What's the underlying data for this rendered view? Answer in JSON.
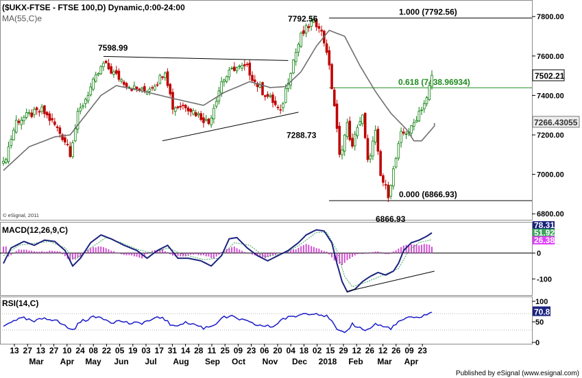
{
  "chart_data": [
    {
      "type": "candlestick",
      "title": "($UKX-FTSE - FTSE 100,D) Dynamic,0:00-24:00",
      "indicator_label": "MA(55,C)e",
      "watermark": "© eSignal, 2011",
      "ylim": [
        6780,
        7870
      ],
      "y_ticks": [
        6800,
        7000,
        7200,
        7400,
        7600,
        7800
      ],
      "y_tick_labels": [
        "6800.00",
        "7000.00",
        "7200.00",
        "7400.00",
        "7600.00",
        "7800.00"
      ],
      "last_price": {
        "value": 7502.21,
        "label": "7502.21"
      },
      "ma_last": {
        "value": 7266.43055,
        "label": "7266.43055"
      },
      "annotations": [
        {
          "label": "7598.99",
          "value": 7598.99
        },
        {
          "label": "7792.56",
          "value": 7792.56
        },
        {
          "label": "7288.73",
          "value": 7288.73
        },
        {
          "label": "6866.93",
          "value": 6866.93
        }
      ],
      "fib_levels": [
        {
          "label": "1.000 (7792.56)",
          "value": 7792.56
        },
        {
          "label": "0.618 (7438.96934)",
          "value": 7438.96934
        },
        {
          "label": "0.000 (6866.93)",
          "value": 6866.93
        }
      ],
      "trendlines": [
        {
          "from": {
            "bar": 39,
            "value": 7598
          },
          "to": {
            "bar": 111,
            "value": 7577
          }
        },
        {
          "from": {
            "bar": 62,
            "value": 7170
          },
          "to": {
            "bar": 115,
            "value": 7315
          }
        }
      ],
      "ma_series": [
        [
          0,
          7020
        ],
        [
          10,
          7140
        ],
        [
          20,
          7190
        ],
        [
          26,
          7200
        ],
        [
          32,
          7300
        ],
        [
          38,
          7400
        ],
        [
          44,
          7450
        ],
        [
          55,
          7420
        ],
        [
          66,
          7385
        ],
        [
          78,
          7350
        ],
        [
          86,
          7415
        ],
        [
          96,
          7470
        ],
        [
          104,
          7440
        ],
        [
          110,
          7445
        ],
        [
          116,
          7520
        ],
        [
          122,
          7650
        ],
        [
          127,
          7730
        ],
        [
          133,
          7700
        ],
        [
          139,
          7550
        ],
        [
          145,
          7420
        ],
        [
          151,
          7310
        ],
        [
          157,
          7230
        ],
        [
          160,
          7170
        ],
        [
          163,
          7170
        ],
        [
          166,
          7215
        ],
        [
          169,
          7260
        ]
      ],
      "close_series": [
        [
          0,
          7050
        ],
        [
          5,
          7270
        ],
        [
          10,
          7300
        ],
        [
          15,
          7325
        ],
        [
          20,
          7250
        ],
        [
          25,
          7150
        ],
        [
          26,
          7110
        ],
        [
          29,
          7300
        ],
        [
          34,
          7440
        ],
        [
          39,
          7560
        ],
        [
          44,
          7500
        ],
        [
          50,
          7440
        ],
        [
          55,
          7420
        ],
        [
          60,
          7470
        ],
        [
          63,
          7530
        ],
        [
          66,
          7340
        ],
        [
          71,
          7350
        ],
        [
          78,
          7280
        ],
        [
          80,
          7260
        ],
        [
          85,
          7470
        ],
        [
          90,
          7540
        ],
        [
          95,
          7540
        ],
        [
          98,
          7470
        ],
        [
          101,
          7420
        ],
        [
          105,
          7370
        ],
        [
          108,
          7310
        ],
        [
          110,
          7430
        ],
        [
          113,
          7580
        ],
        [
          116,
          7700
        ],
        [
          120,
          7770
        ],
        [
          123,
          7760
        ],
        [
          126,
          7630
        ],
        [
          129,
          7350
        ],
        [
          131,
          7090
        ],
        [
          134,
          7250
        ],
        [
          136,
          7130
        ],
        [
          138,
          7250
        ],
        [
          140,
          7290
        ],
        [
          142,
          7060
        ],
        [
          145,
          7210
        ],
        [
          147,
          6990
        ],
        [
          150,
          6900
        ],
        [
          152,
          7020
        ],
        [
          155,
          7200
        ],
        [
          159,
          7230
        ],
        [
          162,
          7320
        ],
        [
          165,
          7380
        ],
        [
          167,
          7502
        ]
      ],
      "bar_count": 168
    },
    {
      "type": "line",
      "title": "MACD(12,26,9,C)",
      "ylim": [
        -160,
        110
      ],
      "y_ticks": [
        0,
        -100
      ],
      "y_tick_labels": [
        "0",
        "-100"
      ],
      "last_values": [
        {
          "label": "78.31",
          "color": "#1a237e"
        },
        {
          "label": "51.92",
          "color": "#3aa35a"
        },
        {
          "label": "26.38",
          "color": "#e040fb"
        }
      ],
      "macd_series": [
        [
          0,
          -40
        ],
        [
          3,
          20
        ],
        [
          8,
          45
        ],
        [
          12,
          30
        ],
        [
          16,
          50
        ],
        [
          20,
          45
        ],
        [
          24,
          10
        ],
        [
          27,
          -50
        ],
        [
          30,
          -20
        ],
        [
          34,
          40
        ],
        [
          38,
          70
        ],
        [
          42,
          55
        ],
        [
          47,
          30
        ],
        [
          52,
          10
        ],
        [
          56,
          -20
        ],
        [
          60,
          10
        ],
        [
          64,
          30
        ],
        [
          68,
          -20
        ],
        [
          72,
          -20
        ],
        [
          77,
          -30
        ],
        [
          81,
          -50
        ],
        [
          85,
          -10
        ],
        [
          88,
          55
        ],
        [
          91,
          60
        ],
        [
          95,
          20
        ],
        [
          99,
          -10
        ],
        [
          103,
          -30
        ],
        [
          107,
          -10
        ],
        [
          111,
          10
        ],
        [
          115,
          40
        ],
        [
          118,
          70
        ],
        [
          122,
          90
        ],
        [
          125,
          85
        ],
        [
          128,
          40
        ],
        [
          130,
          -40
        ],
        [
          132,
          -110
        ],
        [
          134,
          -150
        ],
        [
          137,
          -140
        ],
        [
          140,
          -110
        ],
        [
          143,
          -90
        ],
        [
          146,
          -75
        ],
        [
          149,
          -85
        ],
        [
          152,
          -70
        ],
        [
          154,
          -40
        ],
        [
          156,
          10
        ],
        [
          159,
          40
        ],
        [
          162,
          50
        ],
        [
          165,
          65
        ],
        [
          167,
          78.31
        ]
      ],
      "signal_series": [
        [
          0,
          -10
        ],
        [
          6,
          30
        ],
        [
          12,
          38
        ],
        [
          18,
          45
        ],
        [
          24,
          20
        ],
        [
          28,
          -25
        ],
        [
          34,
          20
        ],
        [
          40,
          60
        ],
        [
          46,
          40
        ],
        [
          52,
          15
        ],
        [
          58,
          0
        ],
        [
          64,
          20
        ],
        [
          70,
          -5
        ],
        [
          78,
          -25
        ],
        [
          84,
          -20
        ],
        [
          90,
          40
        ],
        [
          96,
          30
        ],
        [
          102,
          -15
        ],
        [
          110,
          0
        ],
        [
          116,
          35
        ],
        [
          122,
          80
        ],
        [
          126,
          80
        ],
        [
          130,
          10
        ],
        [
          133,
          -90
        ],
        [
          136,
          -130
        ],
        [
          142,
          -110
        ],
        [
          148,
          -85
        ],
        [
          154,
          -60
        ],
        [
          158,
          10
        ],
        [
          162,
          40
        ],
        [
          167,
          51.92
        ]
      ],
      "histogram": [
        [
          2,
          -15
        ],
        [
          6,
          15
        ],
        [
          10,
          10
        ],
        [
          14,
          5
        ],
        [
          18,
          8
        ],
        [
          22,
          5
        ],
        [
          26,
          -30
        ],
        [
          30,
          -15
        ],
        [
          34,
          20
        ],
        [
          38,
          25
        ],
        [
          42,
          10
        ],
        [
          46,
          -5
        ],
        [
          50,
          -10
        ],
        [
          54,
          -20
        ],
        [
          58,
          10
        ],
        [
          62,
          15
        ],
        [
          66,
          -10
        ],
        [
          70,
          -15
        ],
        [
          74,
          -5
        ],
        [
          78,
          -10
        ],
        [
          82,
          -20
        ],
        [
          86,
          10
        ],
        [
          90,
          25
        ],
        [
          94,
          5
        ],
        [
          98,
          -10
        ],
        [
          102,
          -20
        ],
        [
          106,
          -5
        ],
        [
          110,
          5
        ],
        [
          114,
          15
        ],
        [
          118,
          35
        ],
        [
          122,
          20
        ],
        [
          126,
          5
        ],
        [
          129,
          -30
        ],
        [
          132,
          -45
        ],
        [
          135,
          -20
        ],
        [
          138,
          -5
        ],
        [
          142,
          0
        ],
        [
          146,
          5
        ],
        [
          150,
          -5
        ],
        [
          153,
          10
        ],
        [
          156,
          30
        ],
        [
          159,
          35
        ],
        [
          162,
          30
        ],
        [
          165,
          35
        ],
        [
          167,
          26.38
        ]
      ],
      "trendline": {
        "from": {
          "bar": 134,
          "value": -148
        },
        "to": {
          "bar": 168,
          "value": -70
        }
      }
    },
    {
      "type": "line",
      "title": "RSI(14,C)",
      "ylim": [
        0,
        100
      ],
      "y_ticks": [
        100,
        50,
        0
      ],
      "y_tick_labels": [
        "100",
        "50",
        "0"
      ],
      "last_value": {
        "value": 70.8,
        "label": "70.8"
      },
      "rsi_series": [
        [
          0,
          38
        ],
        [
          4,
          55
        ],
        [
          8,
          58
        ],
        [
          12,
          50
        ],
        [
          16,
          60
        ],
        [
          20,
          55
        ],
        [
          24,
          40
        ],
        [
          27,
          30
        ],
        [
          30,
          50
        ],
        [
          34,
          60
        ],
        [
          38,
          62
        ],
        [
          42,
          50
        ],
        [
          46,
          52
        ],
        [
          50,
          45
        ],
        [
          54,
          48
        ],
        [
          58,
          55
        ],
        [
          62,
          62
        ],
        [
          66,
          38
        ],
        [
          70,
          48
        ],
        [
          74,
          45
        ],
        [
          78,
          35
        ],
        [
          82,
          42
        ],
        [
          85,
          60
        ],
        [
          89,
          62
        ],
        [
          93,
          55
        ],
        [
          97,
          45
        ],
        [
          101,
          40
        ],
        [
          105,
          38
        ],
        [
          109,
          58
        ],
        [
          113,
          62
        ],
        [
          117,
          70
        ],
        [
          121,
          72
        ],
        [
          124,
          68
        ],
        [
          127,
          60
        ],
        [
          130,
          30
        ],
        [
          133,
          20
        ],
        [
          136,
          45
        ],
        [
          139,
          35
        ],
        [
          142,
          30
        ],
        [
          145,
          45
        ],
        [
          148,
          38
        ],
        [
          151,
          35
        ],
        [
          154,
          48
        ],
        [
          157,
          60
        ],
        [
          160,
          58
        ],
        [
          163,
          64
        ],
        [
          166,
          70.8
        ]
      ]
    }
  ],
  "x_axis": {
    "day_ticks": [
      "13",
      "27",
      "13",
      "27",
      "10",
      "24",
      "08",
      "22",
      "05",
      "19",
      "03",
      "17",
      "31",
      "14",
      "28",
      "11",
      "25",
      "09",
      "23",
      "06",
      "20",
      "04",
      "18",
      "02",
      "15",
      "29",
      "12",
      "26",
      "12",
      "26",
      "09",
      "23"
    ],
    "months": [
      {
        "label": "Mar",
        "bar": 5
      },
      {
        "label": "Apr",
        "bar": 21
      },
      {
        "label": "May",
        "bar": 35
      },
      {
        "label": "Jun",
        "bar": 46
      },
      {
        "label": "Jul",
        "bar": 60
      },
      {
        "label": "Aug",
        "bar": 73
      },
      {
        "label": "Sep",
        "bar": 86
      },
      {
        "label": "Oct",
        "bar": 95
      },
      {
        "label": "Nov",
        "bar": 110
      },
      {
        "label": "Dec",
        "bar": 121
      },
      {
        "label": "2018",
        "bar": 134
      },
      {
        "label": "Feb",
        "bar": 150
      },
      {
        "label": "Mar",
        "bar": 163
      },
      {
        "label": "Apr",
        "bar": 174
      }
    ]
  },
  "footer": "Published by eSignal (www.esignal.com)"
}
